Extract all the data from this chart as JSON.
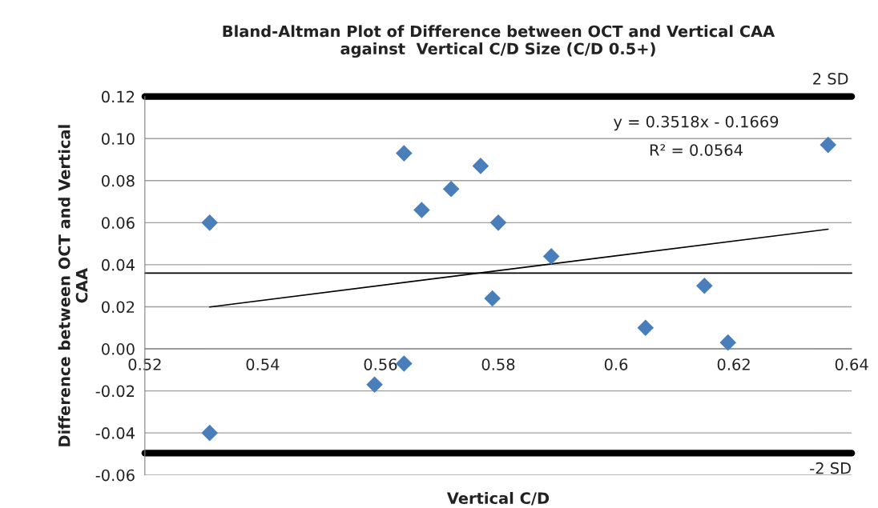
{
  "chart_data": {
    "type": "scatter",
    "title": "Bland-Altman Plot of Difference between OCT and Vertical CAA\nagainst  Vertical C/D Size (C/D 0.5+)",
    "xlabel": "Vertical C/D",
    "ylabel": "Difference between OCT and Vertical\nCAA",
    "series": [
      {
        "color": "#4a7ebb",
        "marker": "diamond",
        "x": [
          0.531,
          0.531,
          0.559,
          0.564,
          0.564,
          0.567,
          0.572,
          0.577,
          0.579,
          0.58,
          0.589,
          0.605,
          0.615,
          0.619,
          0.636
        ],
        "values": [
          0.06,
          -0.04,
          -0.017,
          0.093,
          -0.007,
          0.066,
          0.076,
          0.087,
          0.024,
          0.06,
          0.044,
          0.01,
          0.03,
          0.003,
          0.097
        ]
      },
      {
        "type": "line",
        "marker": "none",
        "color": "#000000",
        "x": [
          0.531,
          0.636
        ],
        "values": [
          0.0199,
          0.0569
        ]
      }
    ],
    "grid": "y",
    "xlim": [
      0.52,
      0.64
    ],
    "xticks": [
      0.52,
      0.54,
      0.56,
      0.58,
      0.6,
      0.62,
      0.64
    ],
    "ylim": [
      -0.06,
      0.12
    ],
    "yticks": [
      {
        "value": -0.06,
        "label": "-0.06"
      },
      {
        "value": -0.04,
        "label": "-0.04"
      },
      {
        "value": -0.02,
        "label": "-0.02"
      },
      {
        "value": 0,
        "label": "0.00"
      },
      {
        "value": 0.02,
        "label": "0.02"
      },
      {
        "value": 0.04,
        "label": "0.04"
      },
      {
        "value": 0.06,
        "label": "0.06"
      },
      {
        "value": 0.08,
        "label": "0.08"
      },
      {
        "value": 0.1,
        "label": "0.10"
      },
      {
        "value": 0.12,
        "label": "0.12"
      }
    ],
    "ref_lines": [
      {
        "axis": "y",
        "value": 0.12,
        "label": "2 SD"
      },
      {
        "axis": "y",
        "value": -0.0496,
        "label": "-2 SD"
      },
      {
        "axis": "y",
        "value": 0.036,
        "label": null
      }
    ],
    "annotations": [
      "y = 0.3518x - 0.1669",
      "R² = 0.0564"
    ]
  }
}
